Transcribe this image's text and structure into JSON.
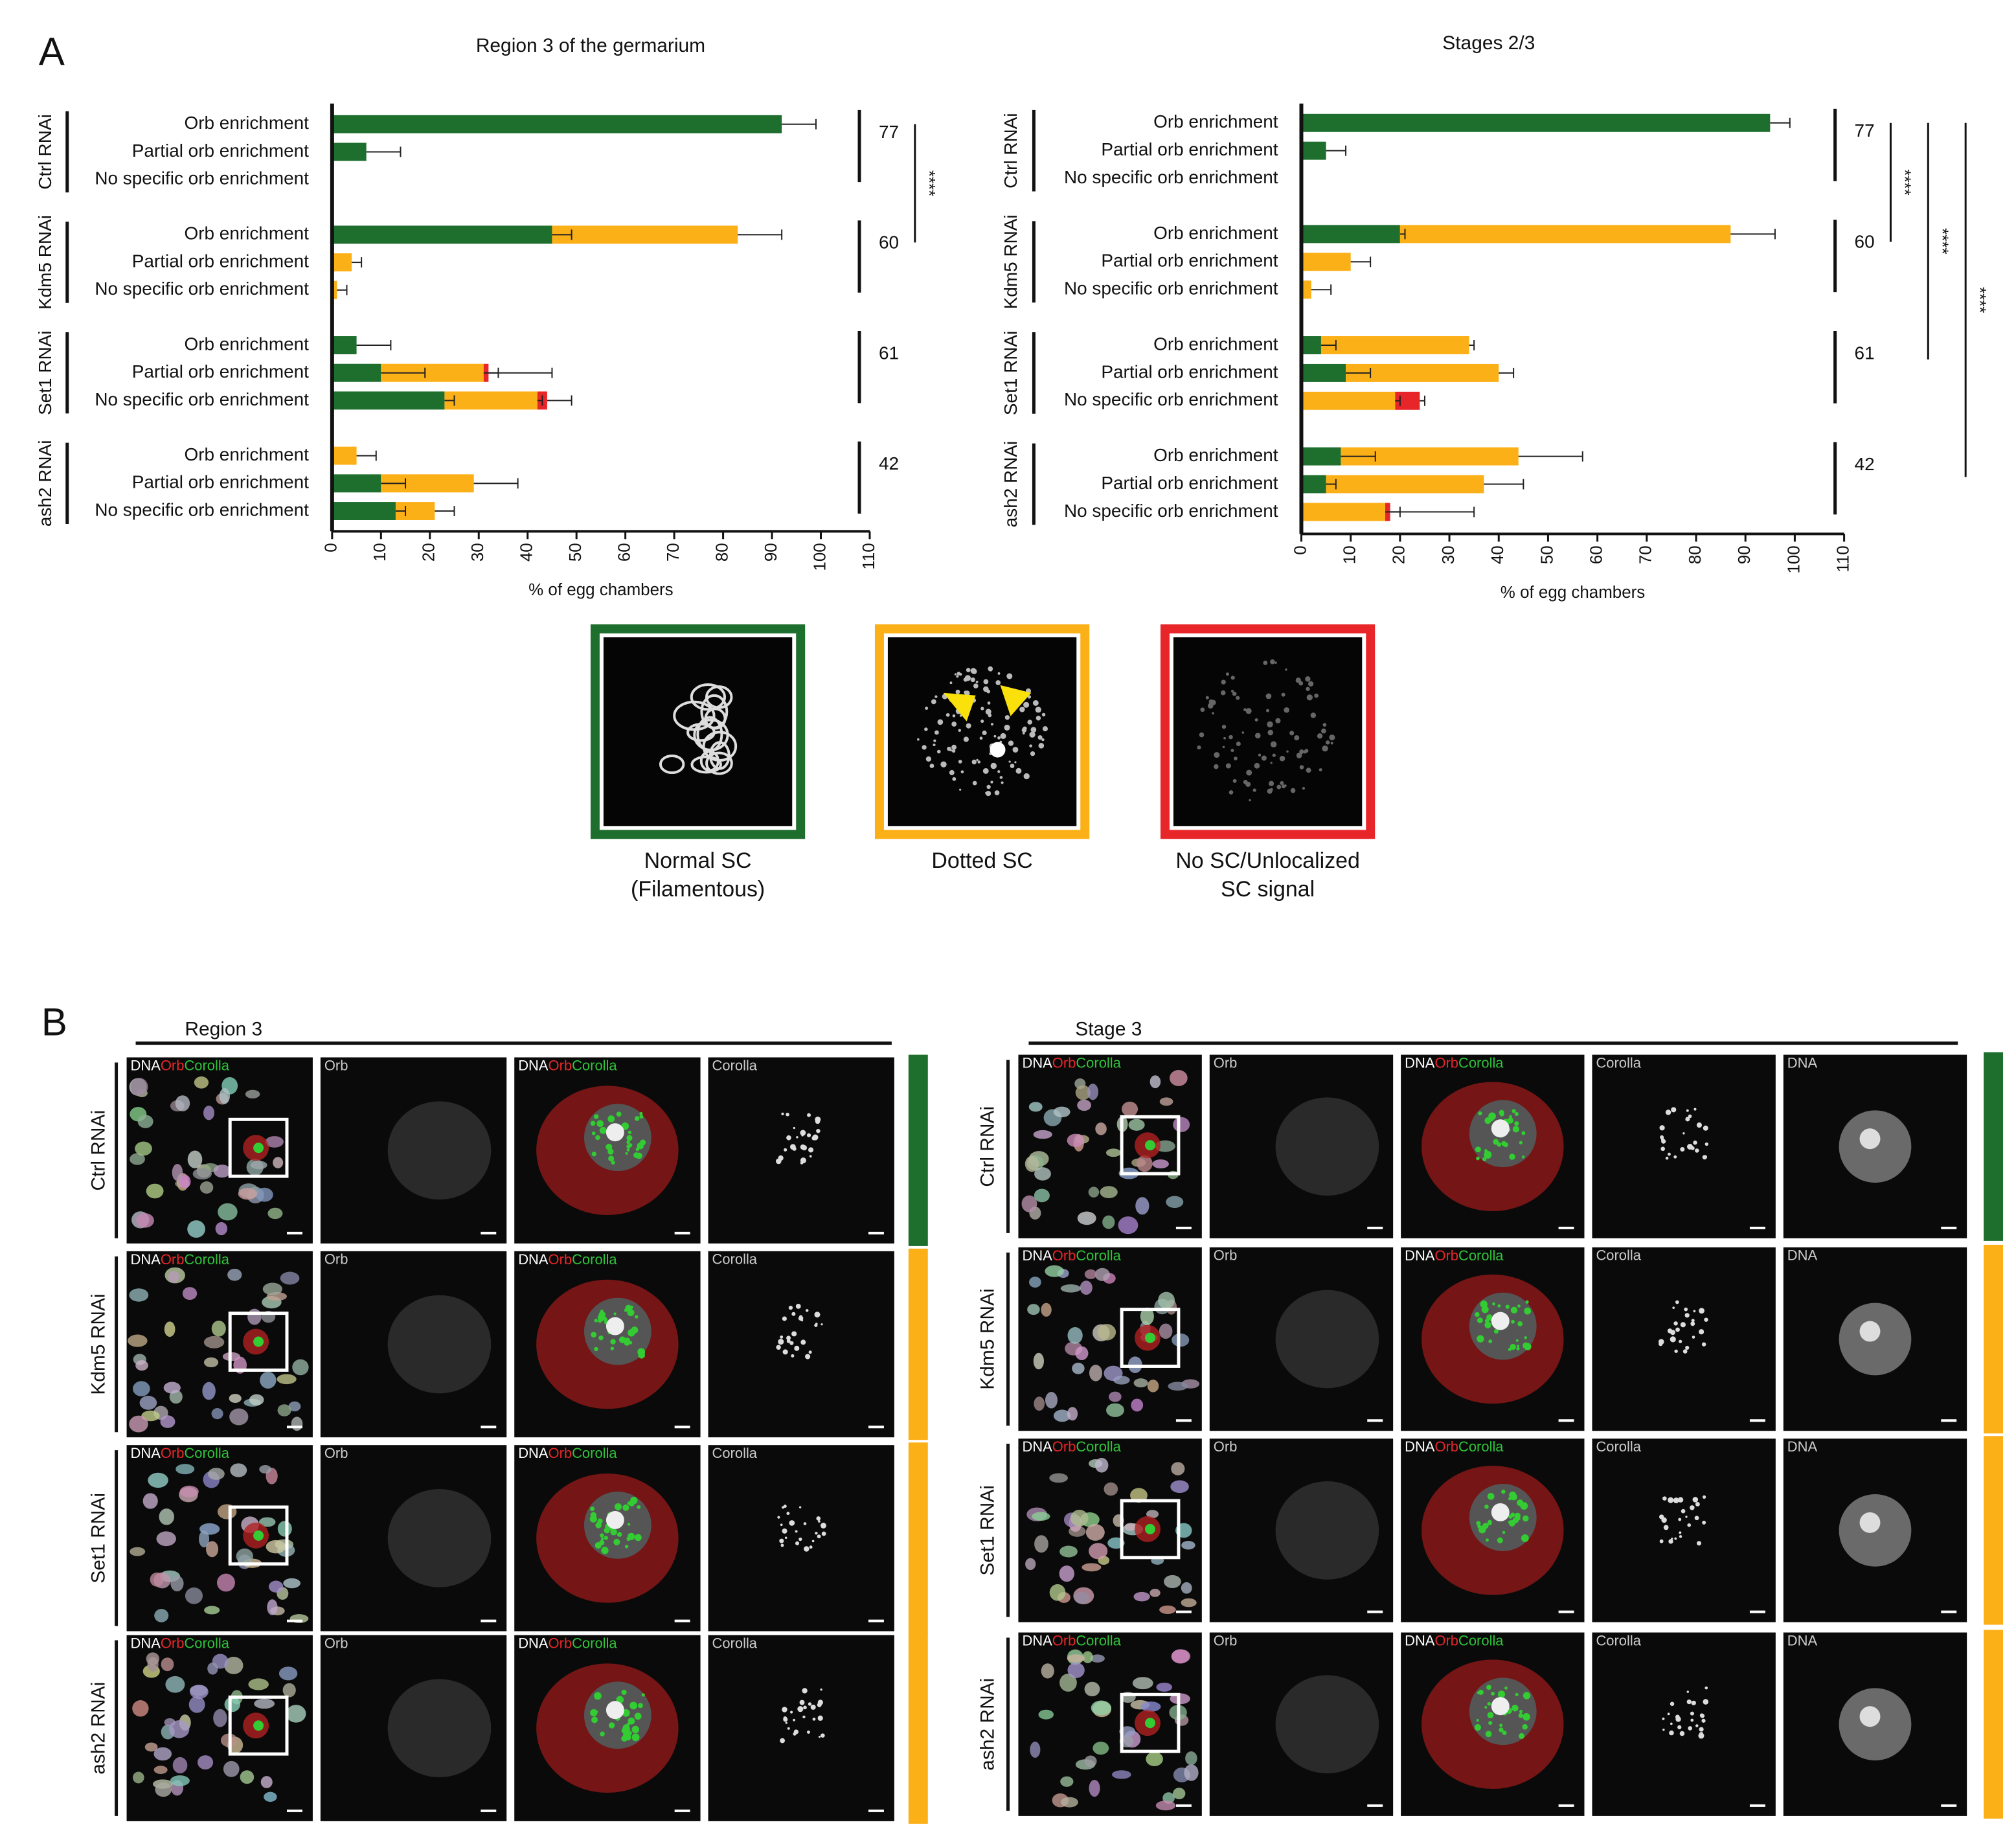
{
  "panel_a_label": "A",
  "chart_data": [
    {
      "type": "bar",
      "orientation": "horizontal",
      "stacked": true,
      "title": "Region 3 of the germarium",
      "xlabel": "% of egg chambers",
      "categories": [
        "Orb enrichment",
        "Partial orb enrichment",
        "No specific orb enrichment",
        "Orb enrichment",
        "Partial orb enrichment",
        "No specific orb enrichment",
        "Orb enrichment",
        "Partial orb enrichment",
        "No specific orb enrichment",
        "Orb enrichment",
        "Partial orb enrichment",
        "No specific orb enrichment"
      ],
      "groups": [
        {
          "name": "Ctrl RNAi",
          "n": 77
        },
        {
          "name": "Kdm5 RNAi",
          "n": 60
        },
        {
          "name": "Set1 RNAi",
          "n": 61
        },
        {
          "name": "ash2 RNAi",
          "n": 42
        }
      ],
      "comparisons": [
        {
          "groups": [
            "Ctrl RNAi",
            "Kdm5 RNAi"
          ],
          "label": "****"
        }
      ],
      "series": [
        {
          "color": "#1e6e2e",
          "values": [
            92,
            7,
            null,
            45,
            null,
            null,
            5,
            10,
            23,
            null,
            10,
            13
          ],
          "errors": [
            7,
            7,
            null,
            4,
            null,
            null,
            7,
            9,
            2,
            null,
            5,
            2
          ]
        },
        {
          "color": "#fcb017",
          "values": [
            null,
            null,
            null,
            38,
            4,
            1,
            null,
            21,
            19,
            5,
            19,
            8
          ],
          "errors": [
            null,
            null,
            null,
            9,
            2,
            2,
            null,
            3,
            1,
            4,
            9,
            4
          ]
        },
        {
          "color": "#e8262a",
          "values": [
            null,
            null,
            null,
            null,
            null,
            null,
            null,
            1,
            2,
            null,
            null,
            null
          ],
          "errors": [
            null,
            null,
            null,
            null,
            null,
            null,
            null,
            13,
            5,
            null,
            null,
            null
          ]
        }
      ],
      "xlim": [
        0,
        110
      ],
      "xticks": [
        0,
        10,
        20,
        30,
        40,
        50,
        60,
        70,
        80,
        90,
        100,
        110
      ]
    },
    {
      "type": "bar",
      "orientation": "horizontal",
      "stacked": true,
      "title": "Stages 2/3",
      "xlabel": "% of egg chambers",
      "categories": [
        "Orb enrichment",
        "Partial orb enrichment",
        "No specific orb enrichment",
        "Orb enrichment",
        "Partial orb enrichment",
        "No specific orb enrichment",
        "Orb enrichment",
        "Partial orb enrichment",
        "No specific orb enrichment",
        "Orb enrichment",
        "Partial orb enrichment",
        "No specific orb enrichment"
      ],
      "groups": [
        {
          "name": "Ctrl RNAi",
          "n": 77
        },
        {
          "name": "Kdm5 RNAi",
          "n": 60
        },
        {
          "name": "Set1 RNAi",
          "n": 61
        },
        {
          "name": "ash2 RNAi",
          "n": 42
        }
      ],
      "comparisons": [
        {
          "groups": [
            "Ctrl RNAi",
            "Kdm5 RNAi"
          ],
          "label": "****"
        },
        {
          "groups": [
            "Ctrl RNAi",
            "Set1 RNAi"
          ],
          "label": "****"
        },
        {
          "groups": [
            "Ctrl RNAi",
            "ash2 RNAi"
          ],
          "label": "****"
        }
      ],
      "series": [
        {
          "color": "#1e6e2e",
          "values": [
            95,
            5,
            null,
            20,
            null,
            null,
            4,
            9,
            null,
            8,
            5,
            null
          ],
          "errors": [
            4,
            4,
            null,
            1,
            null,
            null,
            3,
            5,
            null,
            7,
            2,
            null
          ]
        },
        {
          "color": "#fcb017",
          "values": [
            null,
            null,
            null,
            67,
            10,
            2,
            30,
            31,
            19,
            36,
            32,
            17
          ],
          "errors": [
            null,
            null,
            null,
            9,
            4,
            4,
            1,
            3,
            1,
            13,
            8,
            3
          ]
        },
        {
          "color": "#e8262a",
          "values": [
            null,
            null,
            null,
            null,
            null,
            null,
            null,
            null,
            5,
            null,
            null,
            1
          ],
          "errors": [
            null,
            null,
            null,
            null,
            null,
            null,
            null,
            null,
            1,
            null,
            null,
            17
          ]
        }
      ],
      "xlim": [
        0,
        110
      ],
      "xticks": [
        0,
        10,
        20,
        30,
        40,
        50,
        60,
        70,
        80,
        90,
        100,
        110
      ]
    }
  ],
  "sc_classes": [
    {
      "lines": [
        "Normal SC",
        "(Filamentous)"
      ],
      "color": "#1e6e2e"
    },
    {
      "lines": [
        "Dotted SC"
      ],
      "color": "#fcb017"
    },
    {
      "lines": [
        "No SC/Unlocalized",
        "SC signal"
      ],
      "color": "#e8262a"
    }
  ],
  "panel_b": {
    "label": "B",
    "label_colors": [
      "#ffffff",
      "#e8262a",
      "#2fc43a"
    ],
    "panels": [
      {
        "title": "Region 3",
        "columns": [
          {
            "parts": [
              "DNA",
              "Orb",
              "Corolla"
            ]
          },
          "Orb",
          {
            "parts": [
              "DNA",
              "Orb",
              "Corolla"
            ]
          },
          "Corolla"
        ],
        "rows": [
          {
            "label": "Ctrl RNAi",
            "color": "#1e6e2e"
          },
          {
            "label": "Kdm5 RNAi",
            "color": "#fcb017"
          },
          {
            "label": "Set1 RNAi",
            "color": "#fcb017"
          },
          {
            "label": "ash2 RNAi",
            "color": "#fcb017"
          }
        ]
      },
      {
        "title": "Stage 3",
        "columns": [
          {
            "parts": [
              "DNA",
              "Orb",
              "Corolla"
            ]
          },
          "Orb",
          {
            "parts": [
              "DNA",
              "Orb",
              "Corolla"
            ]
          },
          "Corolla",
          "DNA"
        ],
        "rows": [
          {
            "label": "Ctrl RNAi",
            "color": "#1e6e2e"
          },
          {
            "label": "Kdm5 RNAi",
            "color": "#fcb017"
          },
          {
            "label": "Set1 RNAi",
            "color": "#fcb017"
          },
          {
            "label": "ash2 RNAi",
            "color": "#fcb017"
          }
        ]
      }
    ]
  }
}
